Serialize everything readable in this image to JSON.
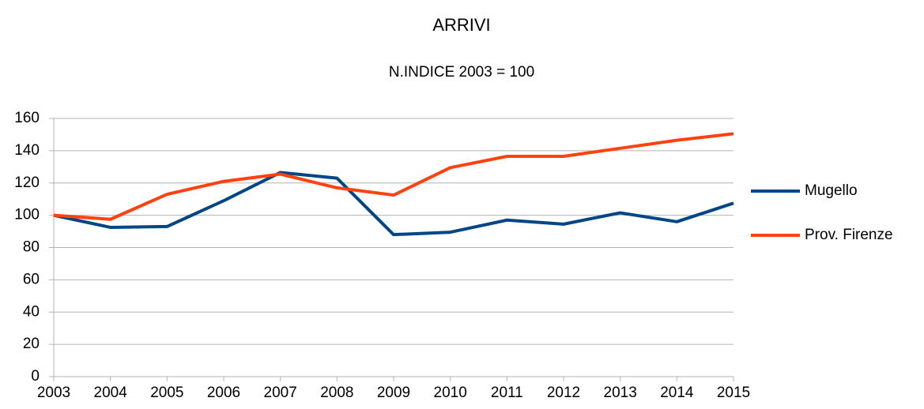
{
  "chart_data": {
    "type": "line",
    "title": "ARRIVI",
    "subtitle": "N.INDICE 2003 = 100",
    "categories": [
      "2003",
      "2004",
      "2005",
      "2006",
      "2007",
      "2008",
      "2009",
      "2010",
      "2011",
      "2012",
      "2013",
      "2014",
      "2015"
    ],
    "series": [
      {
        "name": "Mugello",
        "color": "#004586",
        "values": [
          100,
          92.5,
          93,
          109,
          126.5,
          123,
          88,
          89.5,
          97,
          94.5,
          101.5,
          96,
          107.5
        ]
      },
      {
        "name": "Prov. Firenze",
        "color": "#ff420e",
        "values": [
          100,
          97.5,
          113,
          121,
          125.5,
          117,
          112.5,
          129.5,
          136.5,
          136.5,
          141.5,
          146.5,
          150.5
        ]
      }
    ],
    "ylim": [
      0,
      160
    ],
    "yticks": [
      0,
      20,
      40,
      60,
      80,
      100,
      120,
      140,
      160
    ],
    "grid": true,
    "legend": "right"
  }
}
